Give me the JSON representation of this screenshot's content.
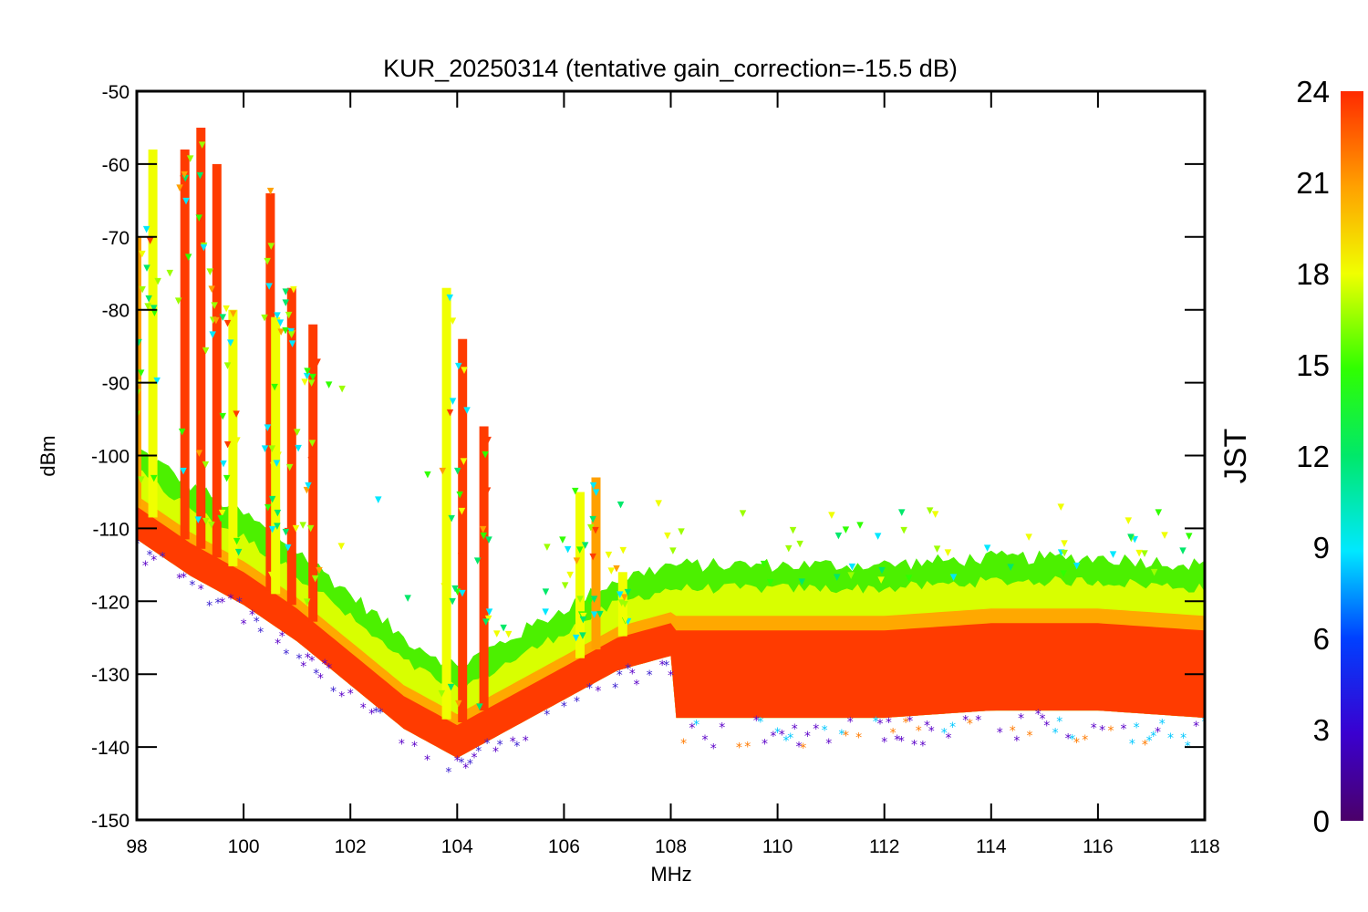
{
  "chart_data": {
    "type": "scatter",
    "title": "KUR_20250314 (tentative gain_correction=-15.5 dB)",
    "xlabel": "MHz",
    "ylabel": "dBm",
    "xlim": [
      98,
      118
    ],
    "ylim": [
      -150,
      -50
    ],
    "x_ticks": [
      98,
      100,
      102,
      104,
      106,
      108,
      110,
      112,
      114,
      116,
      118
    ],
    "y_ticks": [
      -150,
      -140,
      -130,
      -120,
      -110,
      -100,
      -90,
      -80,
      -70,
      -60,
      -50
    ],
    "colorbar": {
      "label": "JST",
      "range": [
        0,
        24
      ],
      "ticks": [
        0,
        3,
        6,
        9,
        12,
        15,
        18,
        21,
        24
      ],
      "colormap": "rainbow (purple-blue-cyan-green-yellow-orange-red)"
    },
    "noise_floor_dBm": [
      [
        98,
        -109
      ],
      [
        99,
        -114
      ],
      [
        100,
        -118
      ],
      [
        101,
        -123
      ],
      [
        102,
        -129
      ],
      [
        103,
        -135
      ],
      [
        104,
        -139
      ],
      [
        105,
        -135
      ],
      [
        106,
        -131
      ],
      [
        107,
        -127
      ],
      [
        108,
        -125
      ],
      [
        108.05,
        -128
      ],
      [
        110,
        -128
      ],
      [
        112,
        -128
      ],
      [
        114,
        -127
      ],
      [
        116,
        -127
      ],
      [
        118,
        -128
      ]
    ],
    "peak_signals": [
      {
        "freq_MHz": 98.0,
        "max_dBm": -70
      },
      {
        "freq_MHz": 98.3,
        "max_dBm": -58
      },
      {
        "freq_MHz": 98.9,
        "max_dBm": -58
      },
      {
        "freq_MHz": 99.2,
        "max_dBm": -55
      },
      {
        "freq_MHz": 99.5,
        "max_dBm": -60
      },
      {
        "freq_MHz": 99.8,
        "max_dBm": -80
      },
      {
        "freq_MHz": 100.5,
        "max_dBm": -64
      },
      {
        "freq_MHz": 100.6,
        "max_dBm": -81
      },
      {
        "freq_MHz": 100.9,
        "max_dBm": -77
      },
      {
        "freq_MHz": 101.3,
        "max_dBm": -82
      },
      {
        "freq_MHz": 103.8,
        "max_dBm": -77
      },
      {
        "freq_MHz": 104.1,
        "max_dBm": -84
      },
      {
        "freq_MHz": 104.5,
        "max_dBm": -96
      },
      {
        "freq_MHz": 106.3,
        "max_dBm": -105
      },
      {
        "freq_MHz": 106.6,
        "max_dBm": -103
      },
      {
        "freq_MHz": 107.1,
        "max_dBm": -116
      }
    ]
  },
  "colors": {
    "floor": "#ff3b00",
    "axis": "#000000"
  }
}
